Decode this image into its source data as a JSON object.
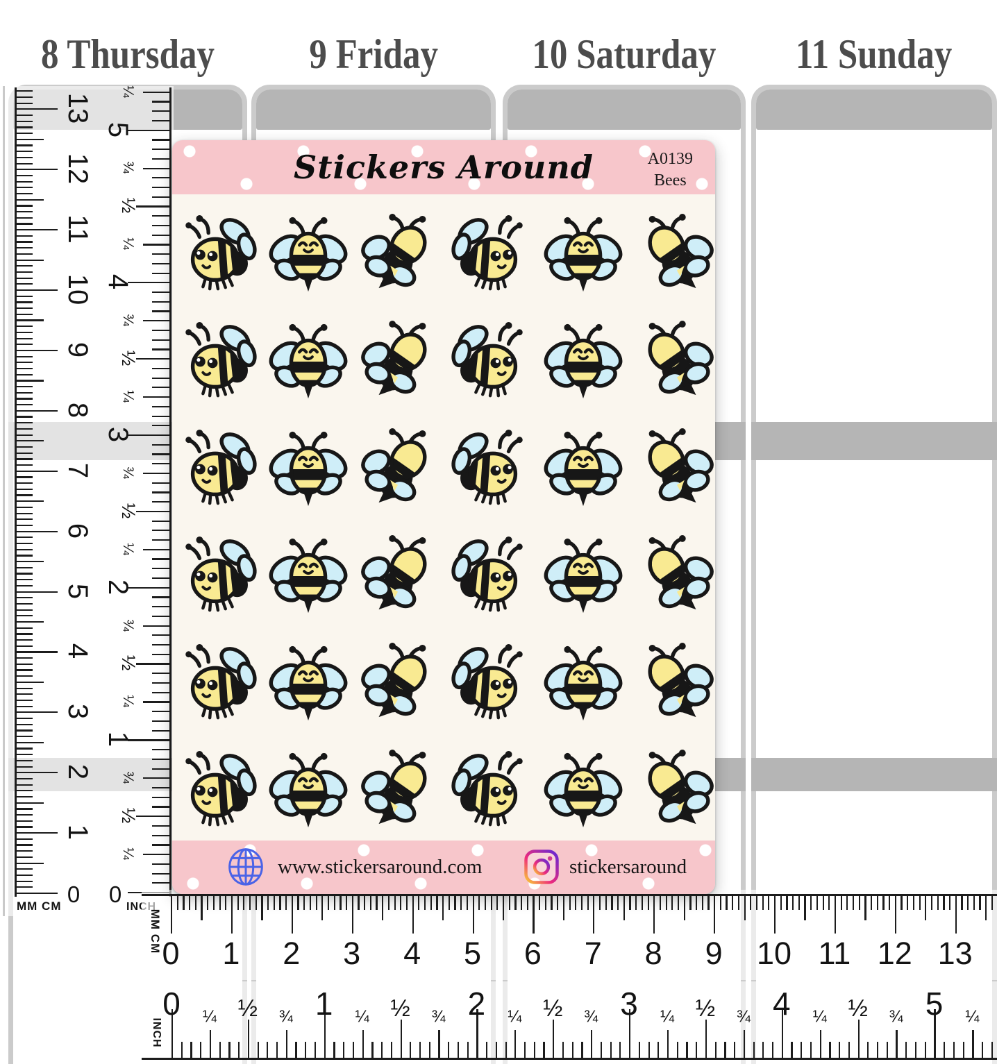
{
  "planner": {
    "day_headers": [
      "8 Thursday",
      "9 Friday",
      "10 Saturday",
      "11 Sunday"
    ]
  },
  "sticker_sheet": {
    "brand": "Stickers Around",
    "sku": "A0139",
    "title": "Bees",
    "rows": 6,
    "row_pattern": [
      "bee-side-left",
      "bee-front",
      "bee-back-left",
      "bee-side-right",
      "bee-front",
      "bee-back-right"
    ],
    "footer": {
      "website": "www.stickersaround.com",
      "instagram": "stickersaround"
    }
  },
  "rulers": {
    "vertical_cm": {
      "label": "MM CM",
      "zero": "0",
      "numbers": [
        "1",
        "2",
        "3",
        "4",
        "5",
        "6",
        "7",
        "8",
        "9",
        "10",
        "11",
        "12",
        "13"
      ]
    },
    "vertical_inch": {
      "label": "INCH",
      "zero": "0",
      "whole_numbers": [
        "1",
        "2",
        "3",
        "4",
        "5"
      ],
      "fractions": [
        "¼",
        "½",
        "¾"
      ]
    },
    "horizontal_cm": {
      "label": "MM CM",
      "numbers": [
        "0",
        "1",
        "2",
        "3",
        "4",
        "5",
        "6",
        "7",
        "8",
        "9",
        "10",
        "11",
        "12",
        "13"
      ]
    },
    "horizontal_inch": {
      "label": "INCH",
      "whole_numbers": [
        "0",
        "1",
        "2",
        "3",
        "4",
        "5"
      ],
      "fractions": [
        "¼",
        "½",
        "¾"
      ]
    }
  },
  "colors": {
    "pink_band": "#f7c6cb",
    "sheet_cream": "#faf6ee",
    "bee_yellow": "#f9ea92",
    "wing_blue": "#cfeef8",
    "outline_black": "#171717",
    "planner_gray": "#b5b5b5",
    "column_edge": "#cbcbcb",
    "day_text": "#4c4c4c",
    "globe_blue": "#4a63e7"
  }
}
